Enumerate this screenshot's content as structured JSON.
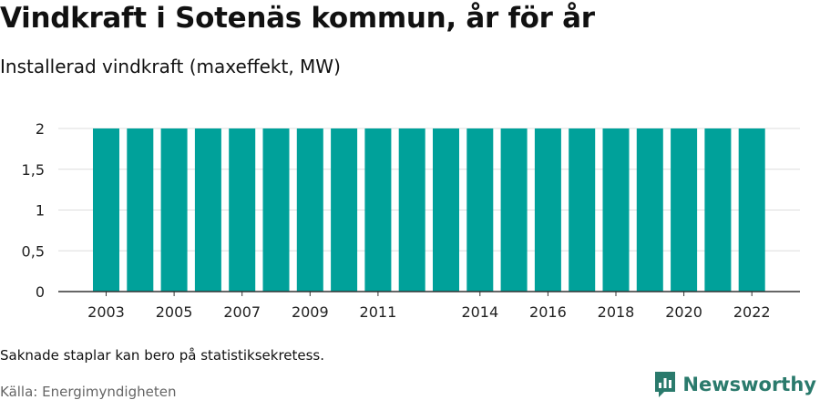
{
  "header": {
    "title": "Vindkraft i Sotenäs kommun, år för år",
    "subtitle": "Installerad vindkraft (maxeffekt, MW)"
  },
  "chart_data": {
    "type": "bar",
    "categories": [
      "2003",
      "2004",
      "2005",
      "2006",
      "2007",
      "2008",
      "2009",
      "2010",
      "2011",
      "2012",
      "2013",
      "2014",
      "2015",
      "2016",
      "2017",
      "2018",
      "2019",
      "2020",
      "2021",
      "2022"
    ],
    "values": [
      2,
      2,
      2,
      2,
      2,
      2,
      2,
      2,
      2,
      2,
      2,
      2,
      2,
      2,
      2,
      2,
      2,
      2,
      2,
      2
    ],
    "x_tick_labels": [
      "2003",
      "2005",
      "2007",
      "2009",
      "2011",
      "2014",
      "2016",
      "2018",
      "2020",
      "2022"
    ],
    "y_tick_labels": [
      "0",
      "0,5",
      "1",
      "1,5",
      "2"
    ],
    "y_ticks": [
      0,
      0.5,
      1,
      1.5,
      2
    ],
    "ylim": [
      0,
      2
    ],
    "grid": true,
    "bar_color": "#00a19a",
    "grid_color": "#dddddd",
    "axis_color": "#333333"
  },
  "footer": {
    "note": "Saknade staplar kan bero på statistiksekretess.",
    "source": "Källa: Energimyndigheten",
    "brand_name": "Newsworthy",
    "brand_color": "#2a7a6c"
  }
}
